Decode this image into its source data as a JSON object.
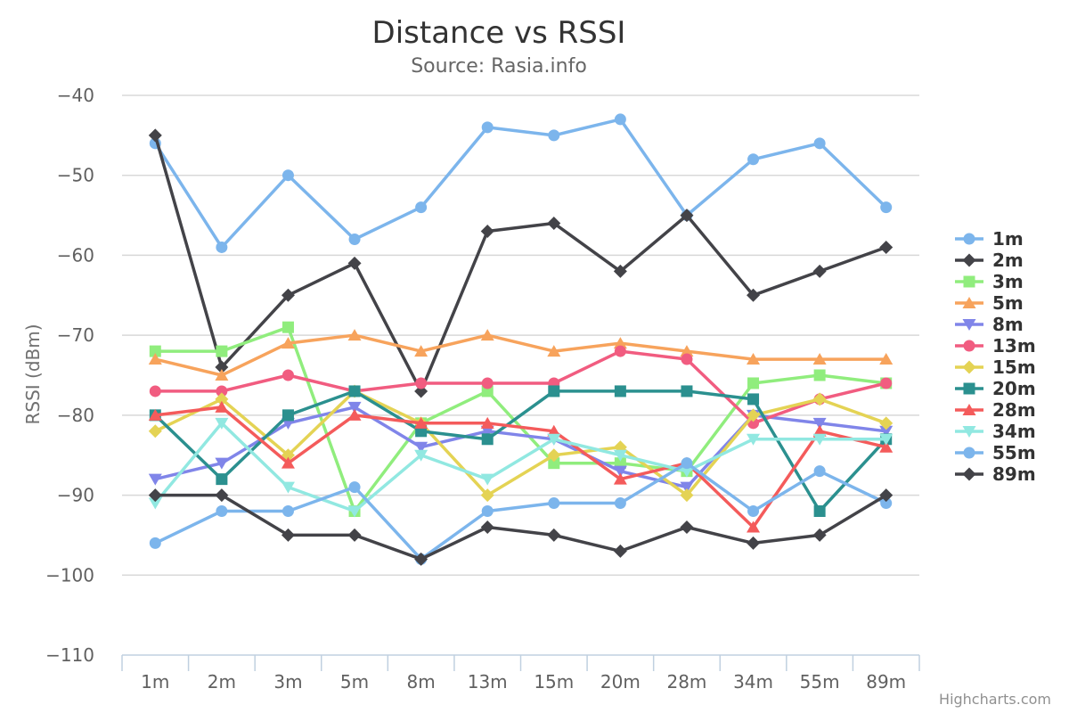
{
  "chart_data": {
    "type": "line",
    "title": "Distance vs RSSI",
    "subtitle": "Source: Rasia.info",
    "xlabel": "",
    "ylabel": "RSSI (dBm)",
    "ylim": [
      -110,
      -40
    ],
    "yticks": [
      -40,
      -50,
      -60,
      -70,
      -80,
      -90,
      -100,
      -110
    ],
    "ytick_labels": [
      "−40",
      "−50",
      "−60",
      "−70",
      "−80",
      "−90",
      "−100",
      "−110"
    ],
    "categories": [
      "1m",
      "2m",
      "3m",
      "5m",
      "8m",
      "13m",
      "15m",
      "20m",
      "28m",
      "34m",
      "55m",
      "89m"
    ],
    "grid": true,
    "legend_position": "right",
    "credits": "Highcharts.com",
    "series": [
      {
        "name": "1m",
        "color": "#7cb5ec",
        "marker": "circle",
        "values": [
          -46,
          -59,
          -50,
          -58,
          -54,
          -44,
          -45,
          -43,
          -55,
          -48,
          -46,
          -54
        ]
      },
      {
        "name": "2m",
        "color": "#434348",
        "marker": "diamond",
        "values": [
          -45,
          -74,
          -65,
          -61,
          -77,
          -57,
          -56,
          -62,
          -55,
          -65,
          -62,
          -59
        ]
      },
      {
        "name": "3m",
        "color": "#90ed7d",
        "marker": "square",
        "values": [
          -72,
          -72,
          -69,
          -92,
          -81,
          -77,
          -86,
          -86,
          -87,
          -76,
          -75,
          -76
        ]
      },
      {
        "name": "5m",
        "color": "#f7a35c",
        "marker": "triangle",
        "values": [
          -73,
          -75,
          -71,
          -70,
          -72,
          -70,
          -72,
          -71,
          -72,
          -73,
          -73,
          -73
        ]
      },
      {
        "name": "8m",
        "color": "#8085e9",
        "marker": "triangle-down",
        "values": [
          -88,
          -86,
          -81,
          -79,
          -84,
          -82,
          -83,
          -87,
          -89,
          -80,
          -81,
          -82
        ]
      },
      {
        "name": "13m",
        "color": "#f15c80",
        "marker": "circle",
        "values": [
          -77,
          -77,
          -75,
          -77,
          -76,
          -76,
          -76,
          -72,
          -73,
          -81,
          -78,
          -76
        ]
      },
      {
        "name": "15m",
        "color": "#e4d354",
        "marker": "diamond",
        "values": [
          -82,
          -78,
          -85,
          -77,
          -81,
          -90,
          -85,
          -84,
          -90,
          -80,
          -78,
          -81
        ]
      },
      {
        "name": "20m",
        "color": "#2b908f",
        "marker": "square",
        "values": [
          -80,
          -88,
          -80,
          -77,
          -82,
          -83,
          -77,
          -77,
          -77,
          -78,
          -92,
          -83
        ]
      },
      {
        "name": "28m",
        "color": "#f45b5b",
        "marker": "triangle",
        "values": [
          -80,
          -79,
          -86,
          -80,
          -81,
          -81,
          -82,
          -88,
          -86,
          -94,
          -82,
          -84
        ]
      },
      {
        "name": "34m",
        "color": "#91e8e1",
        "marker": "triangle-down",
        "values": [
          -91,
          -81,
          -89,
          -92,
          -85,
          -88,
          -83,
          -85,
          -87,
          -83,
          -83,
          -83
        ]
      },
      {
        "name": "55m",
        "color": "#7cb5ec",
        "marker": "circle",
        "values": [
          -96,
          -92,
          -92,
          -89,
          -98,
          -92,
          -91,
          -91,
          -86,
          -92,
          -87,
          -91
        ]
      },
      {
        "name": "89m",
        "color": "#434348",
        "marker": "diamond",
        "values": [
          -90,
          -90,
          -95,
          -95,
          -98,
          -94,
          -95,
          -97,
          -94,
          -96,
          -95,
          -90
        ]
      }
    ]
  }
}
